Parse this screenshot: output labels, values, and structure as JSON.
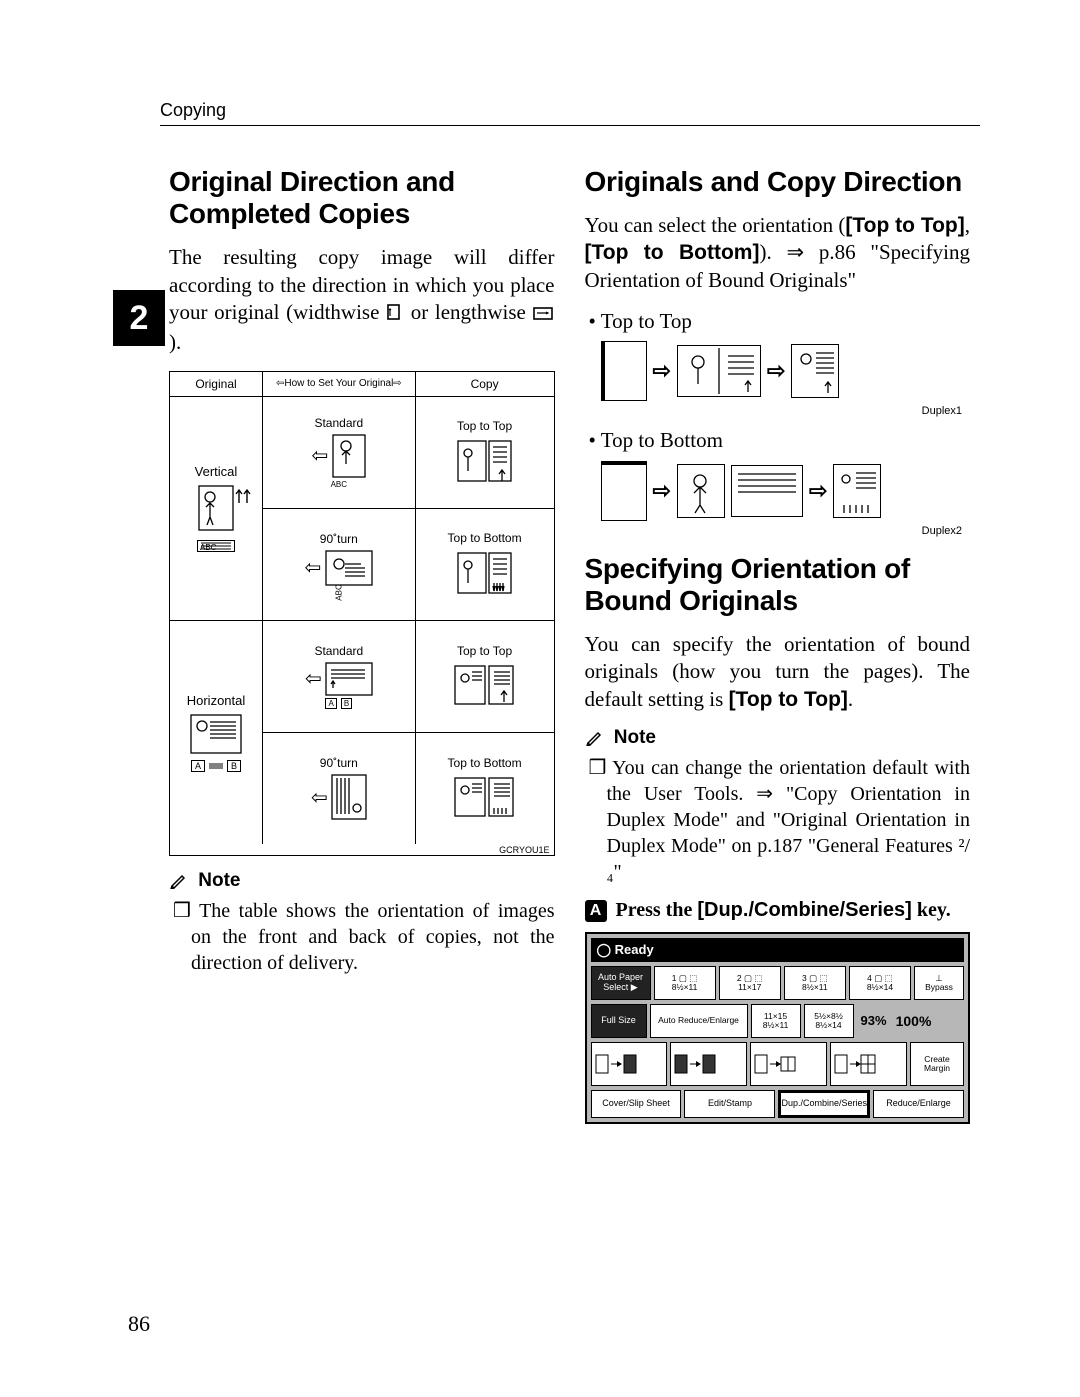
{
  "runningHead": "Copying",
  "chapterTab": "2",
  "pageNumber": "86",
  "left": {
    "h": "Original Direction and Completed Copies",
    "intro_a": "The resulting copy image will differ according to the direction in which you place your original (widthwise ",
    "intro_b": " or lengthwise ",
    "intro_c": ").",
    "table": {
      "hdr_original": "Original",
      "hdr_howto": "How to Set Your Original",
      "hdr_copy": "Copy",
      "row_vertical": "Vertical",
      "row_horizontal": "Horizontal",
      "standard": "Standard",
      "turn90": "90˚turn",
      "abc": "ABC",
      "ab": "A",
      "ab2": "B",
      "top_to_top": "Top to Top",
      "top_to_bottom": "Top to Bottom",
      "ref": "GCRYOU1E"
    },
    "noteHead": "Note",
    "note1": "The table shows the orientation of images on the front and back of copies, not the direction of delivery."
  },
  "right": {
    "h1": "Originals and Copy Direction",
    "p1_a": "You can select the orientation (",
    "p1_b": "[Top to Top]",
    "p1_c": ", ",
    "p1_d": "[Top to Bottom]",
    "p1_e": "). ⇒ p.86 \"Specifying Orientation of Bound Originals\"",
    "bullet_ttt": "Top to Top",
    "ref_ttt": "Duplex1",
    "bullet_ttb": "Top to Bottom",
    "ref_ttb": "Duplex2",
    "h2": "Specifying Orientation of Bound Originals",
    "p2_a": "You can specify the orientation of bound originals (how you turn the pages). The default setting is ",
    "p2_b": "[Top to Top]",
    "p2_c": ".",
    "noteHead": "Note",
    "note1": "You can change the orientation default with the User Tools. ⇒ \"Copy Orientation in Duplex Mode\" and \"Original Orientation in Duplex Mode\" on p.187 \"General Features ²/₄\"",
    "stepNum": "A",
    "step_a": "Press the ",
    "step_b": "[Dup./Combine/Series]",
    "step_c": " key.",
    "panel": {
      "status": "◯ Ready",
      "autoPaper": "Auto Paper\nSelect ▶",
      "tray1": "1 ▢ ⬚\n8½×11",
      "tray2": "2 ▢ ⬚\n11×17",
      "tray3": "3 ▢ ⬚\n8½×11",
      "tray4": "4 ▢ ⬚\n8½×14",
      "bypass": "⊥\nBypass",
      "fullSize": "Full Size",
      "autoRE": "Auto Reduce/Enlarge",
      "preset1": "11×15\n8½×11",
      "preset2": "5½×8½\n8½×14",
      "ratioPct": "93%",
      "ratio100": "100%",
      "createMargin": "Create\nMargin",
      "tab_cover": "Cover/Slip Sheet",
      "tab_edit": "Edit/Stamp",
      "tab_dup": "Dup./Combine/Series",
      "tab_reduce": "Reduce/Enlarge",
      "colors": {
        "panel_bg": "#b7b7b7",
        "status_bg": "#000000",
        "status_fg": "#ffffff",
        "button_bg": "#ffffff",
        "button_dark_bg": "#222222"
      }
    }
  }
}
